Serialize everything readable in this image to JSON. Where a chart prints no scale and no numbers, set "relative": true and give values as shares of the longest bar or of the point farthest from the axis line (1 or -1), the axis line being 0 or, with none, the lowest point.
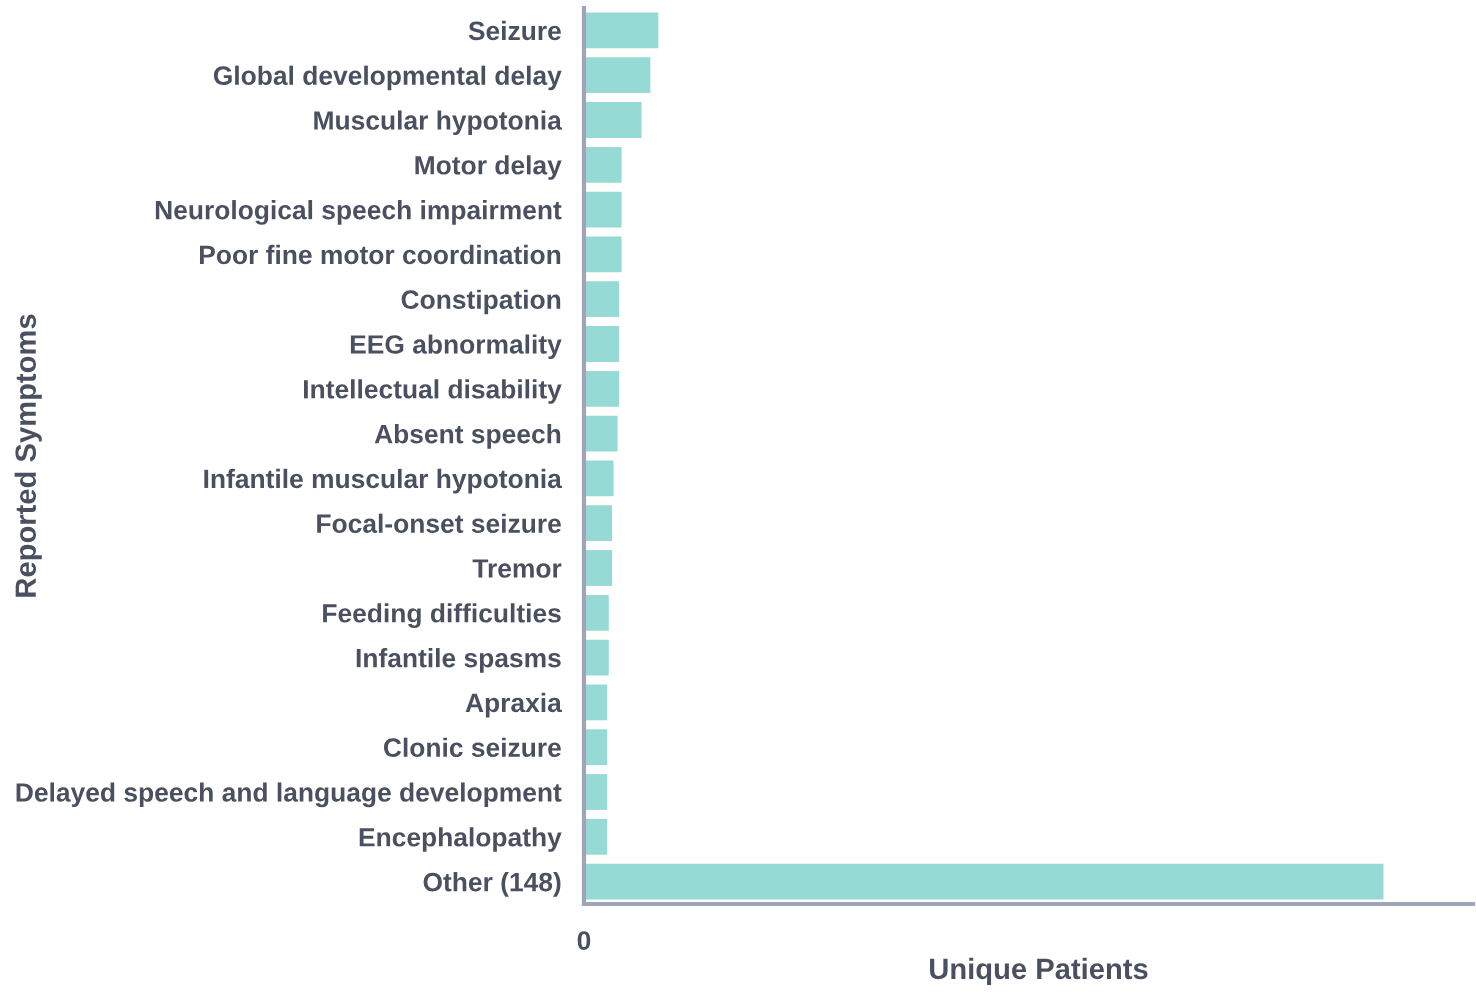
{
  "chart_data": {
    "type": "bar",
    "orientation": "horizontal",
    "relative": true,
    "color": "#96dad6",
    "xlabel": "Unique Patients",
    "ylabel": "Reported Symptoms",
    "annotations": [
      "0"
    ],
    "grid": false,
    "legend": false,
    "categories": [
      "Seizure",
      "Global developmental delay",
      "Muscular hypotonia",
      "Motor delay",
      "Neurological speech impairment",
      "Poor fine motor coordination",
      "Constipation",
      "EEG abnormality",
      "Intellectual disability",
      "Absent speech",
      "Infantile muscular hypotonia",
      "Focal-onset seizure",
      "Tremor",
      "Feeding difficulties",
      "Infantile spasms",
      "Apraxia",
      "Clonic seizure",
      "Delayed speech and language development",
      "Encephalopathy",
      "Other (148)"
    ],
    "values": [
      0.093,
      0.083,
      0.072,
      0.047,
      0.047,
      0.047,
      0.044,
      0.044,
      0.044,
      0.042,
      0.037,
      0.035,
      0.035,
      0.031,
      0.031,
      0.029,
      0.029,
      0.029,
      0.029,
      1
    ]
  }
}
